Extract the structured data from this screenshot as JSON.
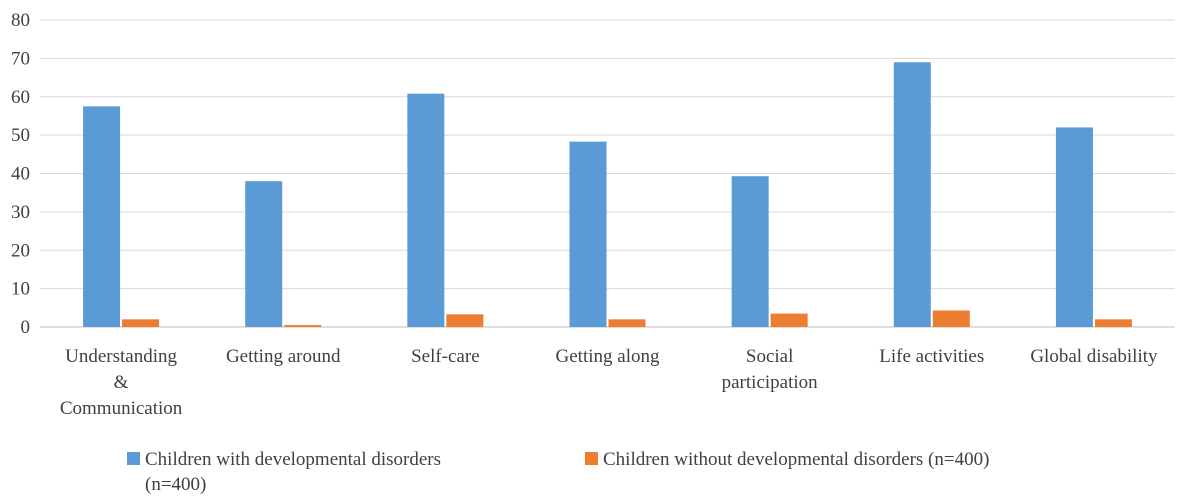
{
  "chart_data": {
    "type": "bar",
    "categories": [
      [
        "Understanding",
        "&",
        "Communication"
      ],
      [
        "Getting around"
      ],
      [
        "Self-care"
      ],
      [
        "Getting along"
      ],
      [
        "Social",
        "participation"
      ],
      [
        "Life activities"
      ],
      [
        "Global disability"
      ]
    ],
    "series": [
      {
        "name": "Children with developmental disorders (n=400)",
        "legend_lines": [
          "Children with developmental disorders",
          "(n=400)"
        ],
        "color": "#5b9bd5",
        "values": [
          57.5,
          38,
          60.8,
          48.3,
          39.3,
          69,
          52
        ]
      },
      {
        "name": "Children without developmental disorders (n=400)",
        "legend_lines": [
          "Children without developmental disorders (n=400)"
        ],
        "color": "#ed7d31",
        "values": [
          2,
          0.5,
          3.3,
          2,
          3.5,
          4.3,
          2
        ]
      }
    ],
    "ylim": [
      0,
      80
    ],
    "yticks": [
      0,
      10,
      20,
      30,
      40,
      50,
      60,
      70,
      80
    ],
    "grid": true,
    "legend_position": "bottom"
  }
}
